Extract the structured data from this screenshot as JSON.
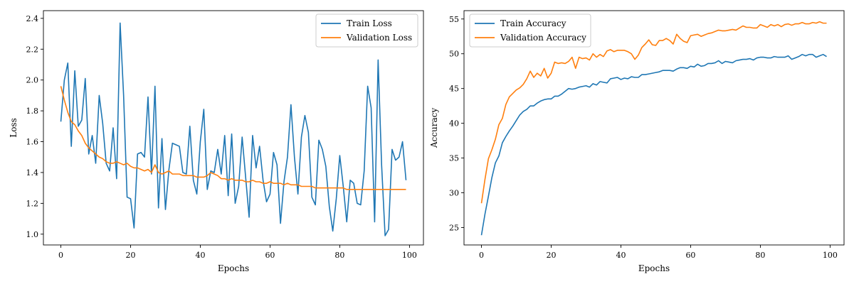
{
  "colors": {
    "train": "#1f77b4",
    "validation": "#ff7f0e"
  },
  "chart_data": [
    {
      "type": "line",
      "xlabel": "Epochs",
      "ylabel": "Loss",
      "xlim": [
        -5,
        104
      ],
      "ylim": [
        0.93,
        2.45
      ],
      "xticks": [
        0,
        20,
        40,
        60,
        80,
        100
      ],
      "yticks": [
        1.0,
        1.2,
        1.4,
        1.6,
        1.8,
        2.0,
        2.2,
        2.4
      ],
      "ytick_decimals": 1,
      "legend": "top-right",
      "x": [
        0,
        1,
        2,
        3,
        4,
        5,
        6,
        7,
        8,
        9,
        10,
        11,
        12,
        13,
        14,
        15,
        16,
        17,
        18,
        19,
        20,
        21,
        22,
        23,
        24,
        25,
        26,
        27,
        28,
        29,
        30,
        31,
        32,
        33,
        34,
        35,
        36,
        37,
        38,
        39,
        40,
        41,
        42,
        43,
        44,
        45,
        46,
        47,
        48,
        49,
        50,
        51,
        52,
        53,
        54,
        55,
        56,
        57,
        58,
        59,
        60,
        61,
        62,
        63,
        64,
        65,
        66,
        67,
        68,
        69,
        70,
        71,
        72,
        73,
        74,
        75,
        76,
        77,
        78,
        79,
        80,
        81,
        82,
        83,
        84,
        85,
        86,
        87,
        88,
        89,
        90,
        91,
        92,
        93,
        94,
        95,
        96,
        97,
        98,
        99
      ],
      "series": [
        {
          "name": "Train Loss",
          "color_key": "train",
          "values": [
            1.73,
            2.0,
            2.11,
            1.57,
            2.06,
            1.7,
            1.74,
            2.01,
            1.52,
            1.64,
            1.46,
            1.9,
            1.72,
            1.46,
            1.41,
            1.69,
            1.36,
            2.37,
            1.9,
            1.24,
            1.23,
            1.04,
            1.52,
            1.53,
            1.5,
            1.89,
            1.39,
            1.96,
            1.17,
            1.62,
            1.16,
            1.42,
            1.59,
            1.58,
            1.57,
            1.4,
            1.39,
            1.7,
            1.35,
            1.26,
            1.6,
            1.81,
            1.29,
            1.41,
            1.4,
            1.55,
            1.39,
            1.64,
            1.25,
            1.65,
            1.2,
            1.31,
            1.63,
            1.37,
            1.11,
            1.64,
            1.43,
            1.57,
            1.35,
            1.21,
            1.26,
            1.53,
            1.45,
            1.07,
            1.34,
            1.5,
            1.84,
            1.5,
            1.26,
            1.63,
            1.77,
            1.66,
            1.24,
            1.19,
            1.61,
            1.55,
            1.44,
            1.18,
            1.02,
            1.23,
            1.51,
            1.31,
            1.08,
            1.35,
            1.33,
            1.2,
            1.19,
            1.41,
            1.96,
            1.82,
            1.08,
            2.13,
            1.45,
            0.99,
            1.03,
            1.55,
            1.48,
            1.5,
            1.6,
            1.35
          ]
        },
        {
          "name": "Validation Loss",
          "color_key": "validation",
          "values": [
            1.96,
            1.87,
            1.79,
            1.73,
            1.71,
            1.67,
            1.64,
            1.59,
            1.56,
            1.54,
            1.52,
            1.5,
            1.49,
            1.47,
            1.46,
            1.46,
            1.47,
            1.46,
            1.45,
            1.46,
            1.44,
            1.43,
            1.43,
            1.42,
            1.41,
            1.42,
            1.4,
            1.45,
            1.4,
            1.39,
            1.4,
            1.41,
            1.39,
            1.39,
            1.39,
            1.38,
            1.38,
            1.38,
            1.38,
            1.37,
            1.37,
            1.37,
            1.38,
            1.4,
            1.39,
            1.38,
            1.36,
            1.36,
            1.35,
            1.36,
            1.35,
            1.35,
            1.35,
            1.34,
            1.34,
            1.35,
            1.34,
            1.34,
            1.33,
            1.33,
            1.34,
            1.33,
            1.33,
            1.33,
            1.32,
            1.33,
            1.32,
            1.32,
            1.32,
            1.31,
            1.31,
            1.31,
            1.31,
            1.3,
            1.3,
            1.3,
            1.3,
            1.3,
            1.3,
            1.3,
            1.3,
            1.3,
            1.29,
            1.29,
            1.29,
            1.29,
            1.29,
            1.29,
            1.29,
            1.29,
            1.29,
            1.29,
            1.29,
            1.29,
            1.29,
            1.29,
            1.29,
            1.29,
            1.29,
            1.29
          ]
        }
      ]
    },
    {
      "type": "line",
      "xlabel": "Epochs",
      "ylabel": "Accuracy",
      "xlim": [
        -5,
        104
      ],
      "ylim": [
        22.5,
        56.2
      ],
      "xticks": [
        0,
        20,
        40,
        60,
        80,
        100
      ],
      "yticks": [
        25,
        30,
        35,
        40,
        45,
        50,
        55
      ],
      "ytick_decimals": 0,
      "legend": "top-left",
      "x": [
        0,
        1,
        2,
        3,
        4,
        5,
        6,
        7,
        8,
        9,
        10,
        11,
        12,
        13,
        14,
        15,
        16,
        17,
        18,
        19,
        20,
        21,
        22,
        23,
        24,
        25,
        26,
        27,
        28,
        29,
        30,
        31,
        32,
        33,
        34,
        35,
        36,
        37,
        38,
        39,
        40,
        41,
        42,
        43,
        44,
        45,
        46,
        47,
        48,
        49,
        50,
        51,
        52,
        53,
        54,
        55,
        56,
        57,
        58,
        59,
        60,
        61,
        62,
        63,
        64,
        65,
        66,
        67,
        68,
        69,
        70,
        71,
        72,
        73,
        74,
        75,
        76,
        77,
        78,
        79,
        80,
        81,
        82,
        83,
        84,
        85,
        86,
        87,
        88,
        89,
        90,
        91,
        92,
        93,
        94,
        95,
        96,
        97,
        98,
        99
      ],
      "series": [
        {
          "name": "Train Accuracy",
          "color_key": "train",
          "values": [
            23.9,
            26.9,
            29.5,
            32.2,
            34.3,
            35.3,
            37.2,
            38.1,
            38.9,
            39.6,
            40.4,
            41.2,
            41.7,
            42.0,
            42.5,
            42.5,
            42.9,
            43.2,
            43.4,
            43.5,
            43.5,
            43.9,
            43.9,
            44.2,
            44.6,
            45.0,
            44.9,
            45.0,
            45.2,
            45.3,
            45.4,
            45.2,
            45.7,
            45.5,
            46.0,
            45.9,
            45.8,
            46.4,
            46.5,
            46.6,
            46.3,
            46.5,
            46.4,
            46.7,
            46.6,
            46.6,
            47.0,
            47.0,
            47.1,
            47.2,
            47.3,
            47.4,
            47.6,
            47.6,
            47.6,
            47.5,
            47.8,
            48.0,
            48.0,
            47.9,
            48.2,
            48.1,
            48.5,
            48.2,
            48.3,
            48.6,
            48.6,
            48.7,
            49.0,
            48.6,
            48.9,
            48.8,
            48.7,
            49.0,
            49.1,
            49.2,
            49.2,
            49.3,
            49.1,
            49.4,
            49.5,
            49.5,
            49.4,
            49.4,
            49.6,
            49.5,
            49.5,
            49.5,
            49.7,
            49.2,
            49.4,
            49.6,
            49.9,
            49.7,
            49.9,
            49.9,
            49.5,
            49.7,
            49.9,
            49.6
          ]
        },
        {
          "name": "Validation Accuracy",
          "color_key": "validation",
          "values": [
            28.5,
            31.9,
            34.9,
            36.2,
            37.7,
            39.8,
            40.7,
            42.7,
            43.8,
            44.3,
            44.8,
            45.1,
            45.6,
            46.4,
            47.5,
            46.6,
            47.2,
            46.8,
            47.9,
            46.5,
            47.2,
            48.8,
            48.6,
            48.7,
            48.6,
            48.9,
            49.5,
            47.9,
            49.5,
            49.3,
            49.4,
            49.1,
            50.0,
            49.5,
            49.9,
            49.6,
            50.4,
            50.6,
            50.3,
            50.5,
            50.5,
            50.5,
            50.3,
            50.0,
            49.2,
            49.8,
            50.9,
            51.4,
            52.0,
            51.3,
            51.2,
            51.9,
            51.9,
            52.2,
            51.9,
            51.4,
            52.8,
            52.2,
            51.8,
            51.6,
            52.6,
            52.7,
            52.8,
            52.5,
            52.7,
            52.9,
            53.0,
            53.2,
            53.4,
            53.3,
            53.3,
            53.4,
            53.5,
            53.4,
            53.7,
            54.0,
            53.8,
            53.8,
            53.7,
            53.7,
            54.2,
            54.0,
            53.8,
            54.2,
            54.0,
            54.2,
            53.9,
            54.2,
            54.3,
            54.1,
            54.3,
            54.3,
            54.5,
            54.3,
            54.3,
            54.5,
            54.4,
            54.6,
            54.4,
            54.4
          ]
        }
      ]
    }
  ]
}
